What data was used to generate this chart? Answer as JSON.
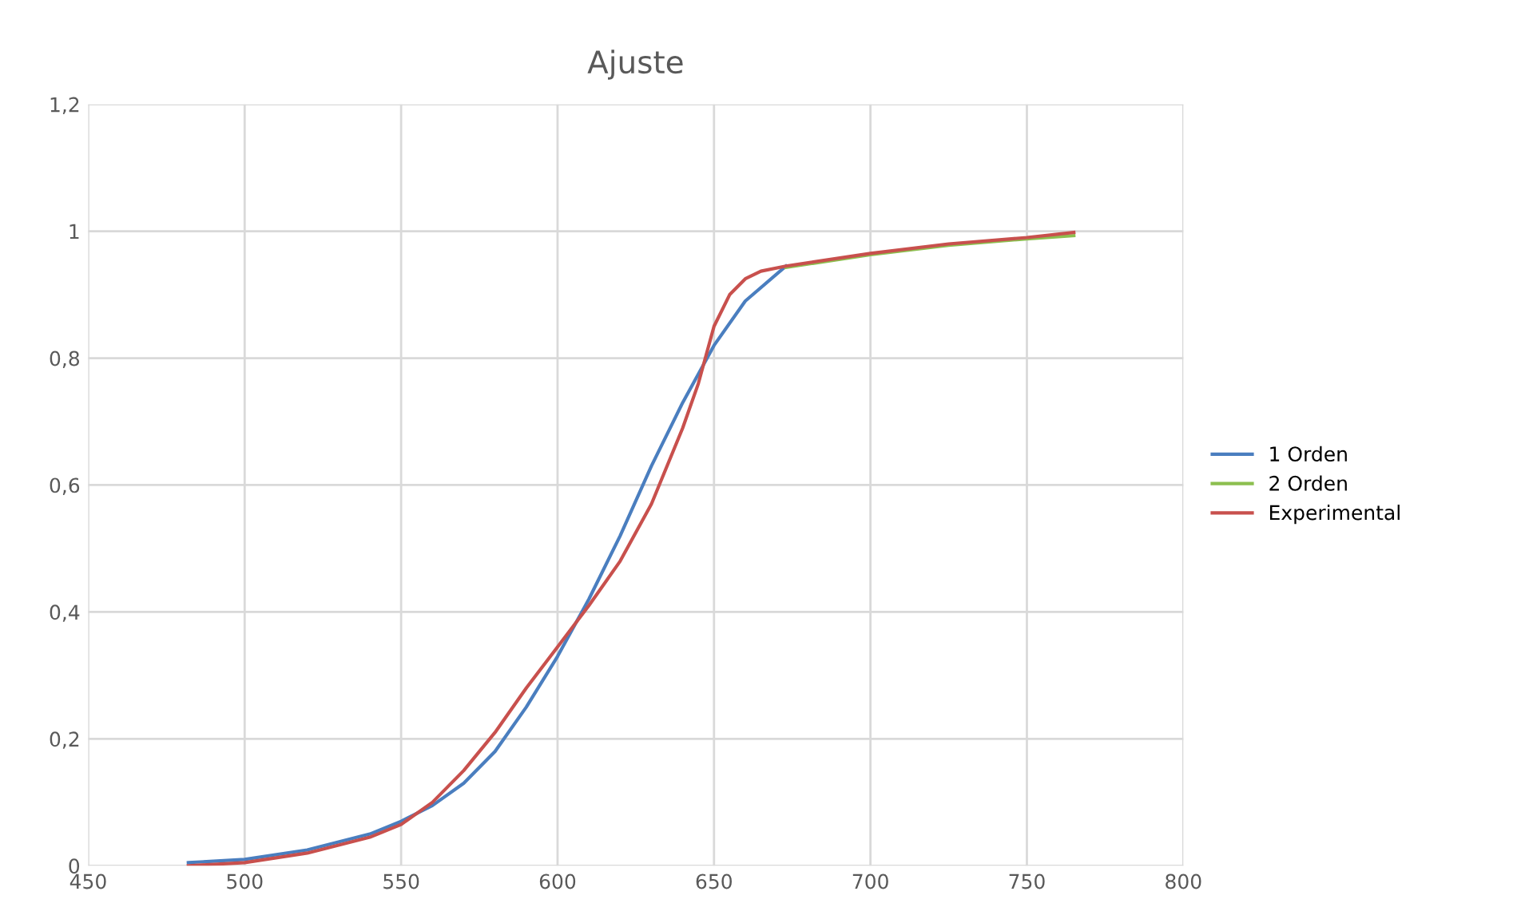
{
  "chart_data": {
    "type": "line",
    "title": "Ajuste",
    "xlim": [
      450,
      800
    ],
    "xticks": [
      450,
      500,
      550,
      600,
      650,
      700,
      750,
      800
    ],
    "ylim": [
      0,
      1.2
    ],
    "yticks": [
      {
        "value": 0,
        "label": "0"
      },
      {
        "value": 0.2,
        "label": "0,2"
      },
      {
        "value": 0.4,
        "label": "0,4"
      },
      {
        "value": 0.6,
        "label": "0,6"
      },
      {
        "value": 0.8,
        "label": "0,8"
      },
      {
        "value": 1,
        "label": "1"
      },
      {
        "value": 1.2,
        "label": "1,2"
      }
    ],
    "grid": true,
    "legend": "right",
    "marker": "none",
    "line_style": "solid",
    "series": [
      {
        "name": "1 Orden",
        "color": "#4a7ebf",
        "x": [
          482,
          500,
          520,
          540,
          550,
          560,
          570,
          580,
          590,
          600,
          610,
          620,
          630,
          640,
          650,
          660,
          673
        ],
        "values": [
          0.005,
          0.01,
          0.025,
          0.05,
          0.07,
          0.095,
          0.13,
          0.18,
          0.25,
          0.33,
          0.42,
          0.52,
          0.63,
          0.73,
          0.82,
          0.89,
          0.945
        ]
      },
      {
        "name": "2 Orden",
        "color": "#8cbf4f",
        "x": [
          673,
          700,
          725,
          750,
          765
        ],
        "values": [
          0.943,
          0.963,
          0.978,
          0.988,
          0.993
        ]
      },
      {
        "name": "Experimental",
        "color": "#c8504d",
        "x": [
          482,
          500,
          520,
          540,
          550,
          560,
          570,
          580,
          590,
          600,
          610,
          620,
          630,
          640,
          645,
          650,
          655,
          660,
          665,
          673,
          700,
          725,
          750,
          765
        ],
        "values": [
          0.0,
          0.005,
          0.02,
          0.045,
          0.065,
          0.1,
          0.15,
          0.21,
          0.28,
          0.345,
          0.41,
          0.48,
          0.57,
          0.69,
          0.76,
          0.85,
          0.9,
          0.925,
          0.937,
          0.945,
          0.965,
          0.98,
          0.99,
          0.998
        ]
      }
    ]
  }
}
